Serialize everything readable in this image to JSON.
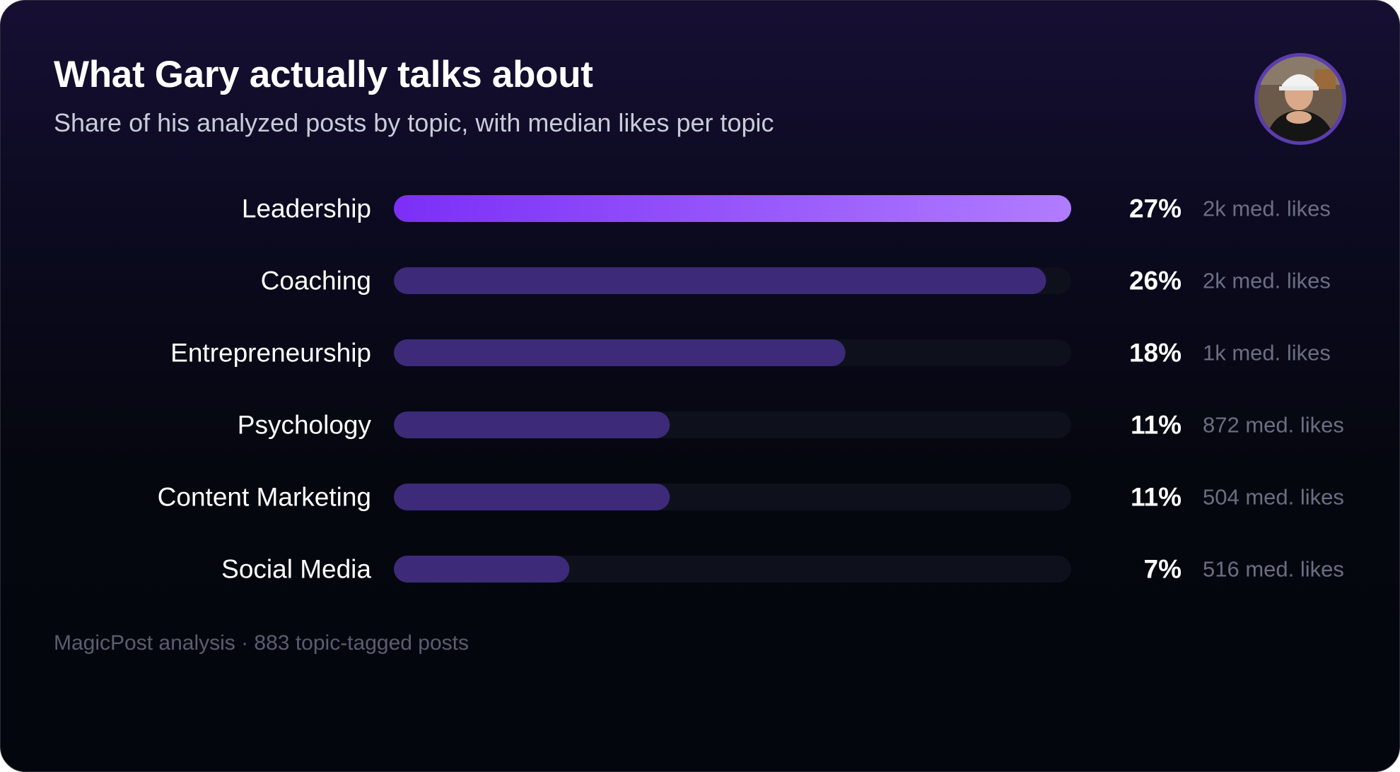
{
  "header": {
    "title": "What Gary actually talks about",
    "subtitle": "Share of his analyzed posts by topic, with median likes per topic"
  },
  "footer": {
    "source": "MagicPost analysis · 883 topic-tagged posts"
  },
  "colors": {
    "background": "#05070f",
    "bar_highlight_start": "#7b2ff7",
    "bar_highlight_end": "#b07cff",
    "bar_fill": "#3d2a78",
    "bar_track": "#0e111b",
    "percent_text": "#ffffff",
    "likes_text": "#6b6e82",
    "avatar_ring": "#5b3db0"
  },
  "chart_data": {
    "type": "bar",
    "orientation": "horizontal",
    "categories": [
      "Leadership",
      "Coaching",
      "Entrepreneurship",
      "Psychology",
      "Content Marketing",
      "Social Media"
    ],
    "series": [
      {
        "values": [
          27,
          26,
          18,
          11,
          11,
          7
        ],
        "value_labels": [
          "27%",
          "26%",
          "18%",
          "11%",
          "11%",
          "7%"
        ]
      }
    ],
    "annotations": [
      "2k med. likes",
      "2k med. likes",
      "1k med. likes",
      "872 med. likes",
      "504 med. likes",
      "516 med. likes"
    ],
    "highlight_index": 0,
    "grid": false,
    "legend": "none"
  }
}
